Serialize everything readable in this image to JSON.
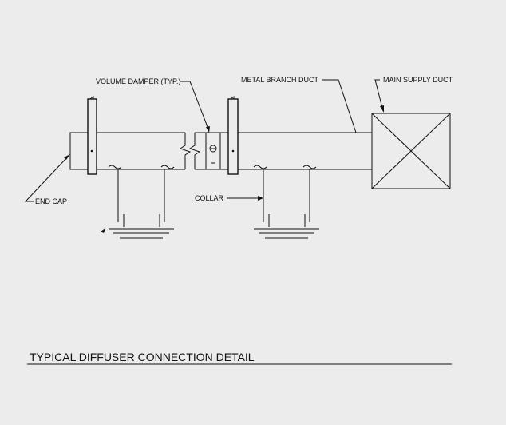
{
  "labels": {
    "volume_damper": "VOLUME DAMPER (TYP.)",
    "metal_branch_duct": "METAL BRANCH DUCT",
    "main_supply_duct": "MAIN SUPPLY DUCT",
    "end_cap": "END CAP",
    "collar": "COLLAR"
  },
  "title": "TYPICAL DIFFUSER CONNECTION DETAIL",
  "colors": {
    "background": "#ececec",
    "line": "#111111"
  }
}
